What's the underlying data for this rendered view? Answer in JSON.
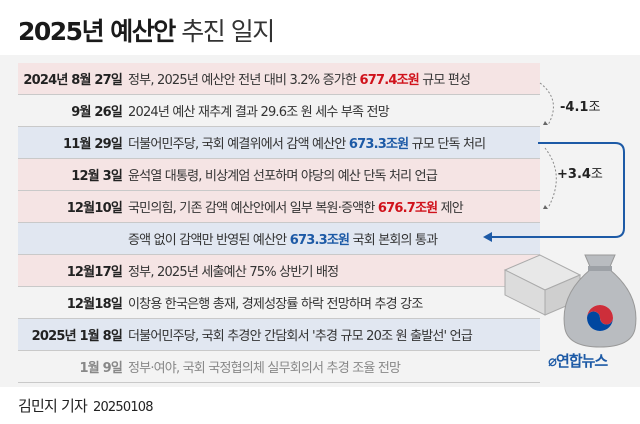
{
  "title": {
    "bold": "2025년 예산안",
    "light": "추진 일지"
  },
  "rows": [
    {
      "date": "2024년 8월 27일",
      "pre": "정부, 2025년 예산안 전년 대비 3.2% 증가한 ",
      "hl": "677.4조원",
      "post": " 규모 편성",
      "color": "red",
      "bg": "pink"
    },
    {
      "date": "9월 26일",
      "pre": "2024년 예산 재추계 결과 29.6조 원 세수 부족 전망",
      "hl": "",
      "post": "",
      "bg": "gray"
    },
    {
      "date": "11월 29일",
      "pre": "더불어민주당, 국회 예결위에서 감액 예산안 ",
      "hl": "673.3조원",
      "post": " 규모 단독 처리",
      "color": "bl",
      "bg": "blue"
    },
    {
      "date": "12월 3일",
      "pre": "윤석열 대통령, 비상계엄 선포하며 야당의 예산 단독 처리 언급",
      "hl": "",
      "post": "",
      "bg": "pink"
    },
    {
      "date": "12월10일",
      "pre": "국민의힘, 기존 감액 예산안에서 일부 복원·증액한 ",
      "hl": "676.7조원",
      "post": " 제안",
      "color": "red",
      "bg": "pink"
    },
    {
      "date": "",
      "pre": "증액 없이 감액만 반영된 예산안 ",
      "hl": "673.3조원",
      "post": " 국회 본회의 통과",
      "color": "bl",
      "bg": "blue"
    },
    {
      "date": "12월17일",
      "pre": "정부, 2025년 세출예산 75% 상반기 배정",
      "hl": "",
      "post": "",
      "bg": "pink"
    },
    {
      "date": "12월18일",
      "pre": "이창용 한국은행 총재, 경제성장률 하락 전망하며 추경 강조",
      "hl": "",
      "post": "",
      "bg": "gray"
    },
    {
      "date": "2025년 1월 8일",
      "pre": "더불어민주당, 국회 추경안 간담회서 '추경 규모 20조 원 출발선' 언급",
      "hl": "",
      "post": "",
      "bg": "blue"
    },
    {
      "date": "1월 9일",
      "pre": "정부·여야, 국회 국정협의체 실무회의서 추경 조율 전망",
      "hl": "",
      "post": "",
      "bg": "gray",
      "faded": true
    }
  ],
  "annotations": {
    "minus": "-4.1",
    "plus": "+3.4",
    "unit": "조"
  },
  "logo": "연합뉴스",
  "footer": {
    "reporter": "김민지 기자",
    "date": "20250108"
  },
  "colors": {
    "red": "#d0121b",
    "blue": "#1d5aa6",
    "pink_row": "#f5e4e4",
    "blue_row": "#e1e7f1"
  }
}
